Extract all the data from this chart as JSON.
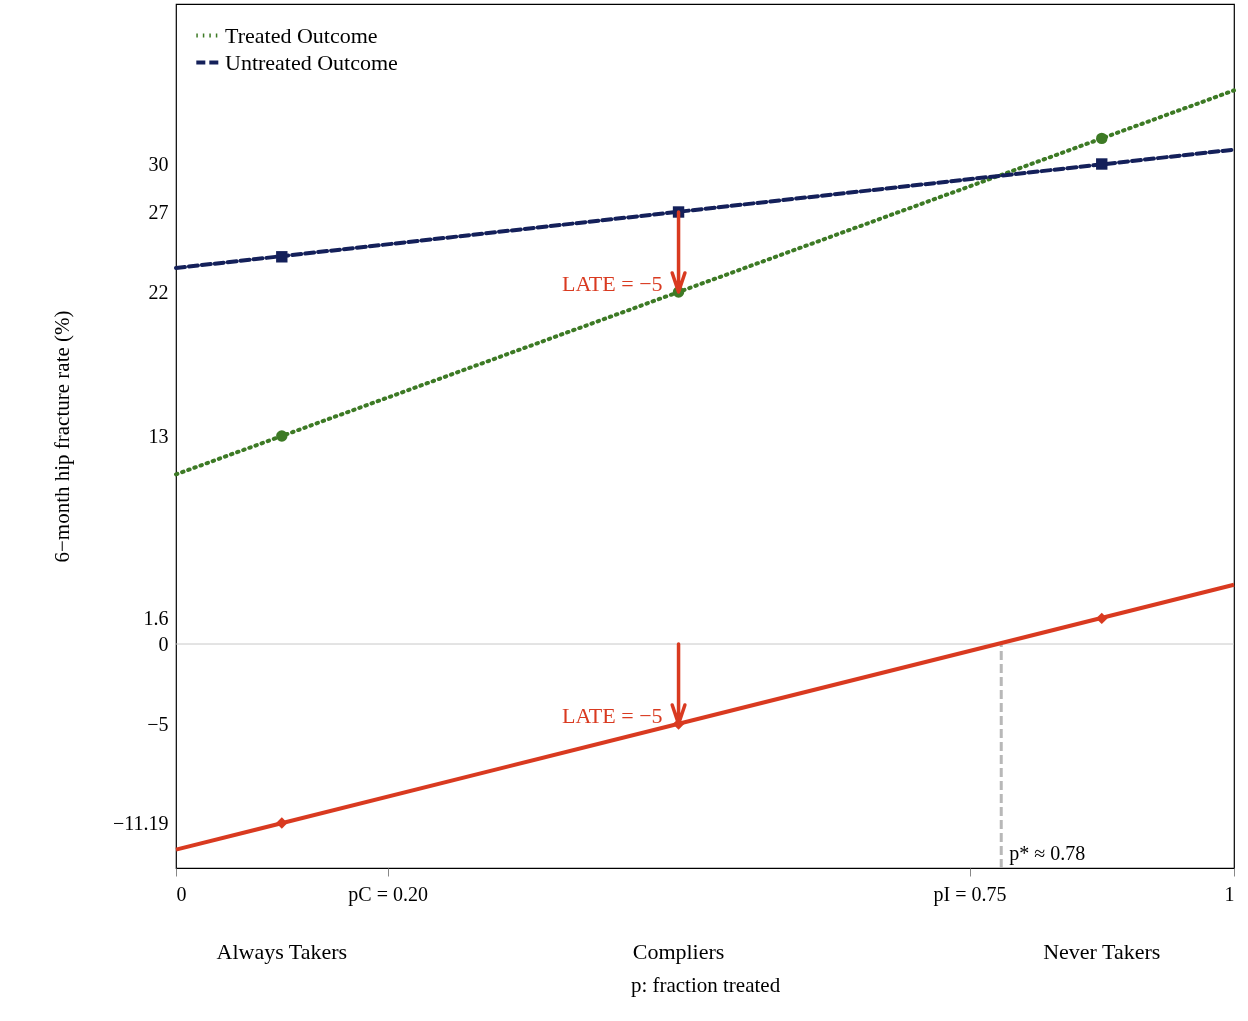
{
  "chart_data": {
    "type": "line",
    "xlabel": "p: fraction treated",
    "ylabel": "6−month hip fracture rate (%)",
    "xlim": [
      0,
      1
    ],
    "ylim": [
      -14,
      40
    ],
    "xticks": [
      0,
      {
        "value": 0.2,
        "label": "pC = 0.20"
      },
      {
        "value": 0.75,
        "label": "pI = 0.75"
      },
      1
    ],
    "yticks": [
      -11.19,
      -5,
      0,
      1.6,
      13,
      22,
      27,
      30
    ],
    "grid": false,
    "legend": "top left",
    "series": [
      {
        "name": "Treated Outcome",
        "type": "line",
        "color": "#3d7a25",
        "line_style": "dotted",
        "x": [
          0,
          1
        ],
        "values": [
          10.6,
          34.6
        ]
      },
      {
        "name": "Untreated Outcome",
        "type": "line",
        "color": "#14205a",
        "line_style": "dashed",
        "x": [
          0,
          1
        ],
        "values": [
          23.5,
          30.9
        ]
      },
      {
        "type": "line",
        "color": "#d93a20",
        "line_style": "solid",
        "x": [
          0,
          1
        ],
        "values": [
          -12.85,
          3.7
        ]
      },
      {
        "type": "scatter",
        "color": "#3d7a25",
        "marker": "circle",
        "x": [
          0.1,
          0.475,
          0.875
        ],
        "values": [
          13,
          22,
          31.6
        ]
      },
      {
        "type": "scatter",
        "color": "#14205a",
        "marker": "square",
        "x": [
          0.1,
          0.475,
          0.875
        ],
        "values": [
          24.2,
          27,
          30
        ]
      },
      {
        "type": "scatter",
        "color": "#d93a20",
        "marker": "diamond",
        "x": [
          0.1,
          0.475,
          0.875
        ],
        "values": [
          -11.19,
          -5,
          1.6
        ]
      }
    ],
    "ref_lines": [
      {
        "axis": "y",
        "value": 0,
        "color": "#c8c8c8",
        "line_style": "solid"
      },
      {
        "axis": "x",
        "value": 0.78,
        "label": "p* ≈ 0.78",
        "color": "#b8b8b8",
        "line_style": "dashed"
      }
    ],
    "annotations": [
      {
        "text": "LATE = −5",
        "x": 0.475,
        "y": 22
      },
      {
        "text": "LATE = −5",
        "x": 0.475,
        "y": -5
      },
      "Always Takers",
      "Compliers",
      "Never Takers"
    ]
  }
}
